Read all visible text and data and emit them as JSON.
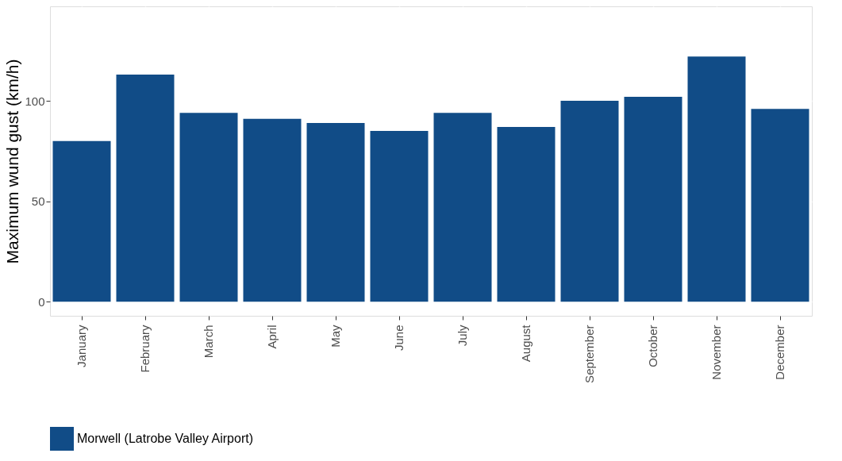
{
  "chart_data": {
    "type": "bar",
    "ylabel": "Maximum wund gust (km/h)",
    "categories": [
      "January",
      "February",
      "March",
      "April",
      "May",
      "June",
      "July",
      "August",
      "September",
      "October",
      "November",
      "December"
    ],
    "series": [
      {
        "name": "Morwell (Latrobe Valley Airport)",
        "color": "#114c87",
        "values": [
          80,
          113,
          94,
          91,
          89,
          85,
          94,
          87,
          100,
          102,
          122,
          96
        ]
      }
    ],
    "ylim": [
      -7,
      147
    ],
    "yticks": [
      0,
      50,
      100
    ],
    "grid": true,
    "legend": "bottom"
  }
}
